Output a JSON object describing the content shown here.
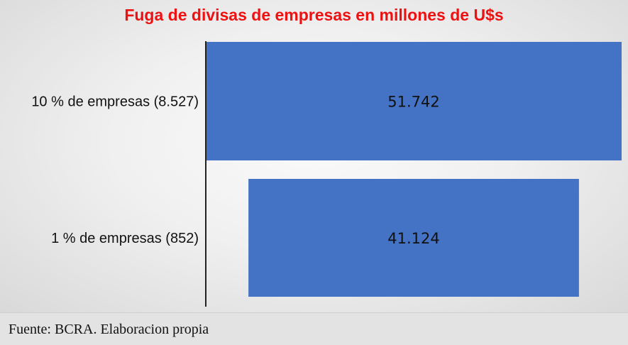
{
  "chart_data": {
    "type": "bar",
    "orientation": "horizontal",
    "title": "Fuga de divisas de empresas en millones  de U$s",
    "categories": [
      "10 % de empresas (8.527)",
      "1 % de empresas (852)"
    ],
    "values": [
      51742,
      41124
    ],
    "value_labels": [
      "51.742",
      "41.124"
    ],
    "xlabel": "",
    "ylabel": "",
    "grid": false,
    "legend": "none",
    "colors": {
      "bar": "#4472c4",
      "title": "#ee1111"
    }
  },
  "footer": {
    "source": "Fuente: BCRA. Elaboracion propia"
  }
}
